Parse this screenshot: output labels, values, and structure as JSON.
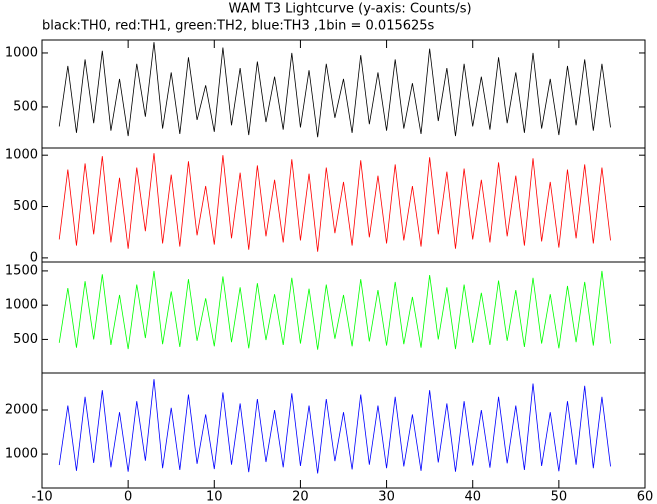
{
  "chart_data": [
    {
      "type": "line",
      "title": "WAM T3 Lightcurve (y-axis: Counts/s)",
      "subtitle": "black:TH0, red:TH1, green:TH2, blue:TH3 ,1bin = 0.015625s",
      "x": [
        -8,
        -7,
        -6,
        -5,
        -4,
        -3,
        -2,
        -1,
        0,
        1,
        2,
        3,
        4,
        5,
        6,
        7,
        8,
        9,
        10,
        11,
        12,
        13,
        14,
        15,
        16,
        17,
        18,
        19,
        20,
        21,
        22,
        23,
        24,
        25,
        26,
        27,
        28,
        29,
        30,
        31,
        32,
        33,
        34,
        35,
        36,
        37,
        38,
        39,
        40,
        41,
        42,
        43,
        44,
        45,
        46,
        47,
        48,
        49,
        50,
        51,
        52,
        53,
        54,
        55,
        56
      ],
      "series": [
        {
          "color": "#000000",
          "values": [
            320,
            880,
            260,
            940,
            350,
            1020,
            280,
            760,
            230,
            900,
            410,
            1100,
            300,
            820,
            250,
            960,
            380,
            700,
            270,
            1050,
            330,
            860,
            240,
            920,
            360,
            780,
            290,
            1000,
            310,
            840,
            220,
            900,
            400,
            760,
            260,
            980,
            340,
            820,
            280,
            940,
            300,
            720,
            250,
            1040,
            370,
            860,
            230,
            900,
            320,
            780,
            290,
            960,
            350,
            820,
            260,
            1000,
            300,
            760,
            240,
            880,
            330,
            940,
            280,
            900,
            310
          ]
        }
      ],
      "ylim": [
        120,
        1120
      ],
      "yticks": [
        500,
        1000
      ]
    },
    {
      "type": "line",
      "x": [
        -8,
        -7,
        -6,
        -5,
        -4,
        -3,
        -2,
        -1,
        0,
        1,
        2,
        3,
        4,
        5,
        6,
        7,
        8,
        9,
        10,
        11,
        12,
        13,
        14,
        15,
        16,
        17,
        18,
        19,
        20,
        21,
        22,
        23,
        24,
        25,
        26,
        27,
        28,
        29,
        30,
        31,
        32,
        33,
        34,
        35,
        36,
        37,
        38,
        39,
        40,
        41,
        42,
        43,
        44,
        45,
        46,
        47,
        48,
        49,
        50,
        51,
        52,
        53,
        54,
        55,
        56
      ],
      "series": [
        {
          "color": "#ff0000",
          "values": [
            180,
            860,
            120,
            920,
            230,
            990,
            150,
            780,
            90,
            880,
            260,
            1020,
            140,
            810,
            110,
            940,
            220,
            700,
            130,
            1000,
            190,
            830,
            80,
            900,
            210,
            760,
            150,
            960,
            170,
            820,
            60,
            880,
            240,
            740,
            120,
            950,
            200,
            800,
            140,
            910,
            170,
            700,
            110,
            980,
            230,
            840,
            90,
            870,
            180,
            760,
            150,
            930,
            210,
            800,
            120,
            970,
            160,
            740,
            100,
            860,
            190,
            910,
            140,
            880,
            170
          ]
        }
      ],
      "ylim": [
        -40,
        1070
      ],
      "yticks": [
        0,
        500,
        1000
      ]
    },
    {
      "type": "line",
      "x": [
        -8,
        -7,
        -6,
        -5,
        -4,
        -3,
        -2,
        -1,
        0,
        1,
        2,
        3,
        4,
        5,
        6,
        7,
        8,
        9,
        10,
        11,
        12,
        13,
        14,
        15,
        16,
        17,
        18,
        19,
        20,
        21,
        22,
        23,
        24,
        25,
        26,
        27,
        28,
        29,
        30,
        31,
        32,
        33,
        34,
        35,
        36,
        37,
        38,
        39,
        40,
        41,
        42,
        43,
        44,
        45,
        46,
        47,
        48,
        49,
        50,
        51,
        52,
        53,
        54,
        55,
        56
      ],
      "series": [
        {
          "color": "#00ff00",
          "values": [
            450,
            1250,
            380,
            1350,
            500,
            1450,
            420,
            1150,
            360,
            1300,
            520,
            1500,
            430,
            1200,
            390,
            1380,
            480,
            1100,
            400,
            1420,
            460,
            1260,
            370,
            1320,
            490,
            1160,
            420,
            1400,
            440,
            1240,
            350,
            1300,
            510,
            1150,
            400,
            1380,
            470,
            1220,
            410,
            1340,
            430,
            1120,
            380,
            1440,
            500,
            1260,
            360,
            1300,
            450,
            1180,
            420,
            1360,
            480,
            1220,
            390,
            1400,
            440,
            1160,
            370,
            1280,
            460,
            1340,
            410,
            1500,
            440
          ]
        }
      ],
      "ylim": [
        10,
        1630
      ],
      "yticks": [
        500,
        1000,
        1500
      ]
    },
    {
      "type": "line",
      "x": [
        -8,
        -7,
        -6,
        -5,
        -4,
        -3,
        -2,
        -1,
        0,
        1,
        2,
        3,
        4,
        5,
        6,
        7,
        8,
        9,
        10,
        11,
        12,
        13,
        14,
        15,
        16,
        17,
        18,
        19,
        20,
        21,
        22,
        23,
        24,
        25,
        26,
        27,
        28,
        29,
        30,
        31,
        32,
        33,
        34,
        35,
        36,
        37,
        38,
        39,
        40,
        41,
        42,
        43,
        44,
        45,
        46,
        47,
        48,
        49,
        50,
        51,
        52,
        53,
        54,
        55,
        56
      ],
      "series": [
        {
          "color": "#0000ff",
          "values": [
            750,
            2100,
            620,
            2300,
            800,
            2450,
            700,
            1950,
            600,
            2200,
            850,
            2700,
            680,
            2050,
            640,
            2350,
            780,
            1900,
            660,
            2400,
            760,
            2150,
            590,
            2250,
            820,
            2000,
            700,
            2380,
            730,
            2100,
            560,
            2250,
            840,
            1950,
            650,
            2350,
            760,
            2100,
            680,
            2300,
            720,
            1900,
            620,
            2450,
            810,
            2150,
            600,
            2200,
            740,
            2000,
            690,
            2300,
            790,
            2100,
            640,
            2600,
            730,
            1950,
            610,
            2200,
            760,
            2550,
            680,
            2300,
            720
          ]
        }
      ],
      "ylim": [
        230,
        2840
      ],
      "yticks": [
        1000,
        2000
      ],
      "xlim": [
        -10,
        60
      ],
      "xticks": [
        -10,
        0,
        10,
        20,
        30,
        40,
        50,
        60
      ]
    }
  ]
}
